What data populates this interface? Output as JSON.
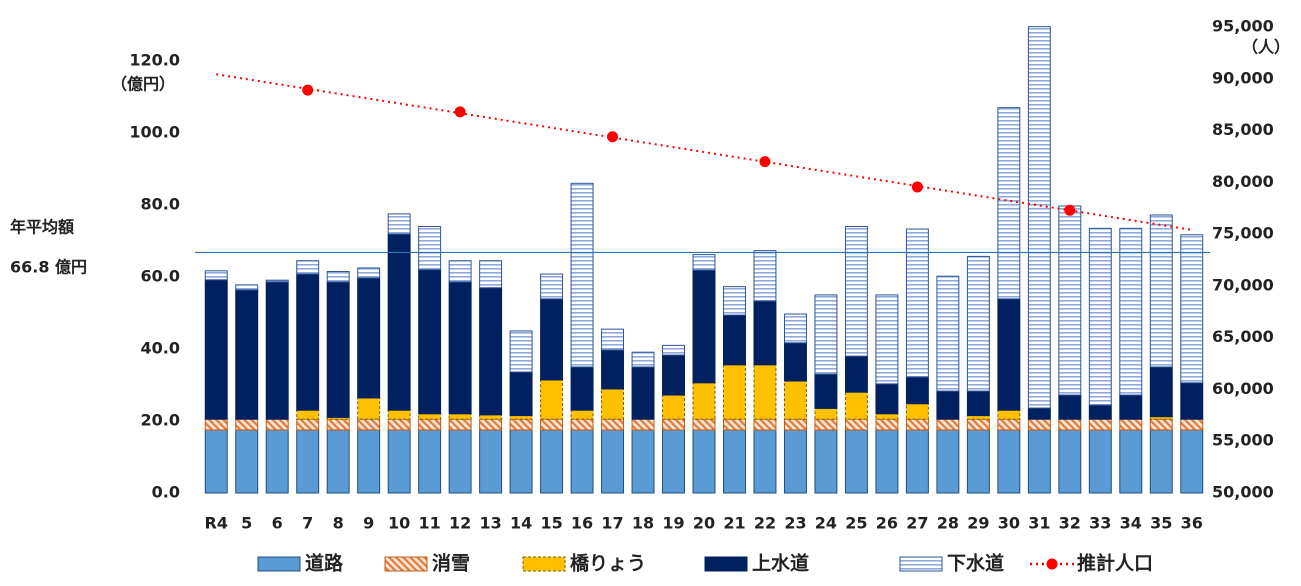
{
  "chart_data": {
    "type": "bar",
    "categories": [
      "R4",
      "5",
      "6",
      "7",
      "8",
      "9",
      "10",
      "11",
      "12",
      "13",
      "14",
      "15",
      "16",
      "17",
      "18",
      "19",
      "20",
      "21",
      "22",
      "23",
      "24",
      "25",
      "26",
      "27",
      "28",
      "29",
      "30",
      "31",
      "32",
      "33",
      "34",
      "35",
      "36"
    ],
    "series": [
      {
        "name": "道路",
        "color": "#5b9bd5",
        "values": [
          17.5,
          17.5,
          17.5,
          17.5,
          17.5,
          17.5,
          17.5,
          17.5,
          17.5,
          17.5,
          17.5,
          17.5,
          17.5,
          17.5,
          17.5,
          17.5,
          17.5,
          17.5,
          17.5,
          17.5,
          17.5,
          17.5,
          17.5,
          17.5,
          17.5,
          17.5,
          17.5,
          17.5,
          17.5,
          17.5,
          17.5,
          17.5,
          17.5
        ]
      },
      {
        "name": "消雪",
        "color": "#f4b183",
        "values": [
          3,
          3,
          3,
          3,
          3,
          3,
          3,
          3,
          3,
          3,
          3,
          3,
          3,
          3,
          3,
          3,
          3,
          3,
          3,
          3,
          3,
          3,
          3,
          3,
          3,
          3,
          3,
          3,
          3,
          3,
          3,
          3,
          3
        ]
      },
      {
        "name": "橋りょう",
        "color": "#ffc000",
        "values": [
          0,
          0,
          0,
          2.5,
          0.5,
          5.9,
          2.5,
          1.5,
          1.5,
          1.2,
          1.0,
          10.9,
          2.5,
          8.4,
          0,
          6.7,
          10.1,
          15.1,
          15.1,
          10.6,
          3.0,
          7.5,
          1.5,
          4.3,
          0,
          1.0,
          2.5,
          0,
          0,
          0,
          0,
          0.7,
          0
        ]
      },
      {
        "name": "上水道",
        "color": "#002060",
        "values": [
          38.7,
          35.9,
          38.1,
          37.8,
          37.6,
          33.3,
          48.9,
          40.0,
          36.6,
          35.3,
          12.1,
          22.5,
          12.0,
          10.8,
          14.5,
          11.1,
          31.3,
          13.8,
          17.7,
          10.6,
          9.5,
          10.0,
          8.3,
          7.4,
          7.8,
          6.8,
          30.9,
          3.1,
          6.7,
          3.9,
          6.7,
          13.8,
          10.1
        ]
      },
      {
        "name": "下水道",
        "color": "#dae3f3",
        "values": [
          2.5,
          1.4,
          0.5,
          3.7,
          2.9,
          2.8,
          5.6,
          12.0,
          5.9,
          7.5,
          11.4,
          6.9,
          51.0,
          5.8,
          4.1,
          2.7,
          4.3,
          7.9,
          14.0,
          8.0,
          22.0,
          36.0,
          24.7,
          41.1,
          31.9,
          37.4,
          53.1,
          105.9,
          52.5,
          49.1,
          46.3,
          42.2,
          41.1
        ]
      },
      {
        "name": "推計人口",
        "color": "#ff0000",
        "axis": "y2",
        "type": "line",
        "values": [
          null,
          null,
          null,
          88900,
          null,
          null,
          null,
          null,
          86800,
          null,
          null,
          null,
          null,
          84400,
          null,
          null,
          null,
          null,
          82000,
          null,
          null,
          null,
          null,
          79550,
          null,
          null,
          null,
          null,
          77300,
          null,
          null,
          null,
          null
        ]
      }
    ],
    "ylim": [
      0,
      129.4
    ],
    "yticks": [
      {
        "value": 0,
        "label": "0.0"
      },
      {
        "value": 20,
        "label": "20.0"
      },
      {
        "value": 40,
        "label": "40.0"
      },
      {
        "value": 60,
        "label": "60.0"
      },
      {
        "value": 80,
        "label": "80.0"
      },
      {
        "value": 100,
        "label": "100.0"
      },
      {
        "value": 120,
        "label": "120.0"
      }
    ],
    "y2lim": [
      50000,
      95000
    ],
    "y2ticks": [
      {
        "value": 50000,
        "label": "50,000"
      },
      {
        "value": 55000,
        "label": "55,000"
      },
      {
        "value": 60000,
        "label": "60,000"
      },
      {
        "value": 65000,
        "label": "65,000"
      },
      {
        "value": 70000,
        "label": "70,000"
      },
      {
        "value": 75000,
        "label": "75,000"
      },
      {
        "value": 80000,
        "label": "80,000"
      },
      {
        "value": 85000,
        "label": "85,000"
      },
      {
        "value": 90000,
        "label": "90,000"
      },
      {
        "value": 95000,
        "label": "95,000"
      }
    ],
    "y_unit": "（億円）",
    "y2_unit": "（人）",
    "average": {
      "name": "年平均額",
      "value": 66.8,
      "label": "66.8 億円"
    },
    "trendline": true,
    "legend": "bottom"
  }
}
